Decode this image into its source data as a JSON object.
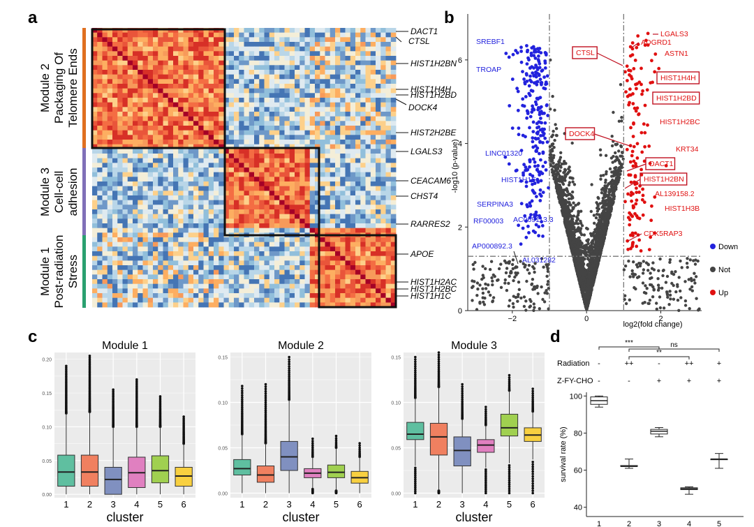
{
  "panels": {
    "a": "a",
    "b": "b",
    "c": "c",
    "d": "d"
  },
  "chart_data": [
    {
      "type": "heatmap",
      "panel": "a",
      "modules": [
        {
          "name": "Module 2",
          "subtitle": [
            "Packaging Of",
            "Telomere Ends"
          ],
          "color": "#e07020"
        },
        {
          "name": "Module 3",
          "subtitle": [
            "Cell-cell",
            "adhesion"
          ],
          "color": "#8070b8"
        },
        {
          "name": "Module 1",
          "subtitle": [
            "Post-radiation",
            "Stress"
          ],
          "color": "#2aa070"
        }
      ],
      "genes": [
        "DACT1",
        "CTSL",
        "HIST1H2BN",
        "HIST1H4H",
        "HIST1H2BD",
        "DOCK4",
        "HIST2H2BE",
        "LGALS3",
        "CEACAM6",
        "CHST4",
        "RARRES2",
        "APOE",
        "HIST1H2AC",
        "HIST1H2BC",
        "HIST1H1C"
      ]
    },
    {
      "type": "scatter",
      "panel": "b",
      "title": "",
      "xlabel": "log2(fold change)",
      "ylabel": "-log10 (p-value)",
      "xticks": [
        -2,
        0,
        2
      ],
      "yticks": [
        0,
        2,
        4,
        6
      ],
      "xlim": [
        -3.2,
        3.1
      ],
      "ylim": [
        0,
        7.1
      ],
      "thresholds": {
        "x": [
          -1,
          1
        ],
        "y": 1.3
      },
      "legend": [
        {
          "label": "Down",
          "color": "#2222dd"
        },
        {
          "label": "Not",
          "color": "#444444"
        },
        {
          "label": "Up",
          "color": "#e01010"
        }
      ],
      "labels_down": [
        {
          "gene": "SREBF1",
          "x": -1.3,
          "y": 6.2
        },
        {
          "gene": "TROAP",
          "x": -1.3,
          "y": 5.9
        },
        {
          "gene": "LINC01320",
          "x": -1.4,
          "y": 3.5
        },
        {
          "gene": "HIST1H1E",
          "x": -1.5,
          "y": 2.9
        },
        {
          "gene": "SERPINA3",
          "x": -1.5,
          "y": 2.3
        },
        {
          "gene": "RF00003",
          "x": -1.3,
          "y": 1.9
        },
        {
          "gene": "AC069113.3",
          "x": -1.3,
          "y": 1.8
        },
        {
          "gene": "AP000892.3",
          "x": -2.0,
          "y": 1.3
        },
        {
          "gene": "AL031282",
          "x": -1.4,
          "y": 1.1
        }
      ],
      "labels_up": [
        {
          "gene": "LGALS3",
          "x": 1.9,
          "y": 7.0,
          "boxed": false
        },
        {
          "gene": "ADGRD1",
          "x": 1.5,
          "y": 6.8,
          "boxed": false
        },
        {
          "gene": "ASTN1",
          "x": 1.9,
          "y": 6.6,
          "boxed": false
        },
        {
          "gene": "CTSL",
          "x": 1.2,
          "y": 6.1,
          "boxed": true
        },
        {
          "gene": "HIST1H4H",
          "x": 2.4,
          "y": 5.8,
          "boxed": true
        },
        {
          "gene": "HIST1H2BD",
          "x": 2.4,
          "y": 5.3,
          "boxed": true
        },
        {
          "gene": "HIST1H2BC",
          "x": 2.2,
          "y": 4.9,
          "boxed": false
        },
        {
          "gene": "DOCK4",
          "x": 1.2,
          "y": 4.0,
          "boxed": true
        },
        {
          "gene": "KRT34",
          "x": 2.6,
          "y": 3.7,
          "boxed": false
        },
        {
          "gene": "DACT1",
          "x": 1.2,
          "y": 3.2,
          "boxed": true
        },
        {
          "gene": "HIST1H2BN",
          "x": 1.1,
          "y": 2.8,
          "boxed": true
        },
        {
          "gene": "AL139158.2",
          "x": 2.3,
          "y": 2.7,
          "boxed": false
        },
        {
          "gene": "HIST1H3B",
          "x": 2.6,
          "y": 2.3,
          "boxed": false
        },
        {
          "gene": "CDK5RAP3",
          "x": 1.1,
          "y": 1.6,
          "boxed": false
        }
      ]
    },
    {
      "type": "box",
      "panel": "c",
      "title": "Module 1",
      "xlabel": "cluster",
      "categories": [
        "1",
        "2",
        "3",
        "4",
        "5",
        "6"
      ],
      "ylim": [
        -0.005,
        0.21
      ],
      "yticks": [
        0.0,
        0.05,
        0.1,
        0.15,
        0.2
      ],
      "boxes": [
        {
          "q1": 0.012,
          "median": 0.033,
          "q3": 0.058,
          "low": 0,
          "high": 0.12,
          "out_max": 0.19
        },
        {
          "q1": 0.012,
          "median": 0.033,
          "q3": 0.058,
          "low": 0,
          "high": 0.122,
          "out_max": 0.205
        },
        {
          "q1": 0.0,
          "median": 0.022,
          "q3": 0.04,
          "low": 0,
          "high": 0.1,
          "out_max": 0.155
        },
        {
          "q1": 0.01,
          "median": 0.032,
          "q3": 0.055,
          "low": 0,
          "high": 0.1,
          "out_max": 0.17
        },
        {
          "q1": 0.017,
          "median": 0.035,
          "q3": 0.057,
          "low": 0,
          "high": 0.1,
          "out_max": 0.145
        },
        {
          "q1": 0.012,
          "median": 0.027,
          "q3": 0.04,
          "low": 0,
          "high": 0.075,
          "out_max": 0.115
        }
      ]
    },
    {
      "type": "box",
      "panel": "c",
      "title": "Module 2",
      "xlabel": "cluster",
      "categories": [
        "1",
        "2",
        "3",
        "4",
        "5",
        "6"
      ],
      "ylim": [
        -0.005,
        0.155
      ],
      "yticks": [
        0.0,
        0.05,
        0.1,
        0.15
      ],
      "boxes": [
        {
          "q1": 0.02,
          "median": 0.027,
          "q3": 0.037,
          "low": 0,
          "high": 0.065,
          "out_max": 0.118
        },
        {
          "q1": 0.012,
          "median": 0.02,
          "q3": 0.03,
          "low": 0,
          "high": 0.055,
          "out_max": 0.12
        },
        {
          "q1": 0.025,
          "median": 0.04,
          "q3": 0.057,
          "low": 0,
          "high": 0.103,
          "out_max": 0.15
        },
        {
          "q1": 0.017,
          "median": 0.022,
          "q3": 0.027,
          "low": 0.005,
          "high": 0.04,
          "out_max": 0.06
        },
        {
          "q1": 0.017,
          "median": 0.023,
          "q3": 0.031,
          "low": 0.003,
          "high": 0.05,
          "out_max": 0.063
        },
        {
          "q1": 0.011,
          "median": 0.017,
          "q3": 0.024,
          "low": 0,
          "high": 0.04,
          "out_max": 0.055
        }
      ]
    },
    {
      "type": "box",
      "panel": "c",
      "title": "Module 3",
      "xlabel": "cluster",
      "categories": [
        "1",
        "2",
        "3",
        "4",
        "5",
        "6"
      ],
      "ylim": [
        -0.005,
        0.155
      ],
      "yticks": [
        0.0,
        0.05,
        0.1,
        0.15
      ],
      "boxes": [
        {
          "q1": 0.059,
          "median": 0.065,
          "q3": 0.078,
          "low": 0.03,
          "high": 0.105,
          "out_max": 0.15
        },
        {
          "q1": 0.042,
          "median": 0.062,
          "q3": 0.077,
          "low": 0.003,
          "high": 0.117,
          "out_max": 0.155
        },
        {
          "q1": 0.03,
          "median": 0.047,
          "q3": 0.062,
          "low": 0,
          "high": 0.082,
          "out_max": 0.12
        },
        {
          "q1": 0.045,
          "median": 0.053,
          "q3": 0.059,
          "low": 0.028,
          "high": 0.075,
          "out_max": 0.095
        },
        {
          "q1": 0.063,
          "median": 0.072,
          "q3": 0.087,
          "low": 0.033,
          "high": 0.113,
          "out_max": 0.13
        },
        {
          "q1": 0.057,
          "median": 0.064,
          "q3": 0.072,
          "low": 0.037,
          "high": 0.09,
          "out_max": 0.115
        }
      ]
    },
    {
      "type": "box",
      "panel": "d",
      "title": "",
      "ylabel": "survival rate (%)",
      "categories": [
        "1",
        "2",
        "3",
        "4",
        "5"
      ],
      "ylim": [
        35,
        102
      ],
      "yticks": [
        40,
        60,
        80,
        100
      ],
      "radiation": [
        "-",
        "++",
        "-",
        "++",
        "+"
      ],
      "zfycho": [
        "-",
        "-",
        "+",
        "+",
        "+"
      ],
      "row_labels": {
        "radiation": "Radiation",
        "zfycho": "Z-FY-CHO"
      },
      "boxes": [
        {
          "low": 94,
          "q1": 95.5,
          "median": 97.5,
          "q3": 99.5,
          "high": 100
        },
        {
          "low": 61,
          "q1": 62,
          "median": 62,
          "q3": 62.5,
          "high": 66
        },
        {
          "low": 78,
          "q1": 79.5,
          "median": 81,
          "q3": 82,
          "high": 83
        },
        {
          "low": 47,
          "q1": 49.5,
          "median": 50,
          "q3": 50.5,
          "high": 51
        },
        {
          "low": 61,
          "q1": 66,
          "median": 66,
          "q3": 66,
          "high": 69
        }
      ],
      "significance": [
        {
          "from": 1,
          "to": 3,
          "label": "***"
        },
        {
          "from": 2,
          "to": 5,
          "label": "ns"
        },
        {
          "from": 2,
          "to": 4,
          "label": "**"
        }
      ]
    }
  ]
}
